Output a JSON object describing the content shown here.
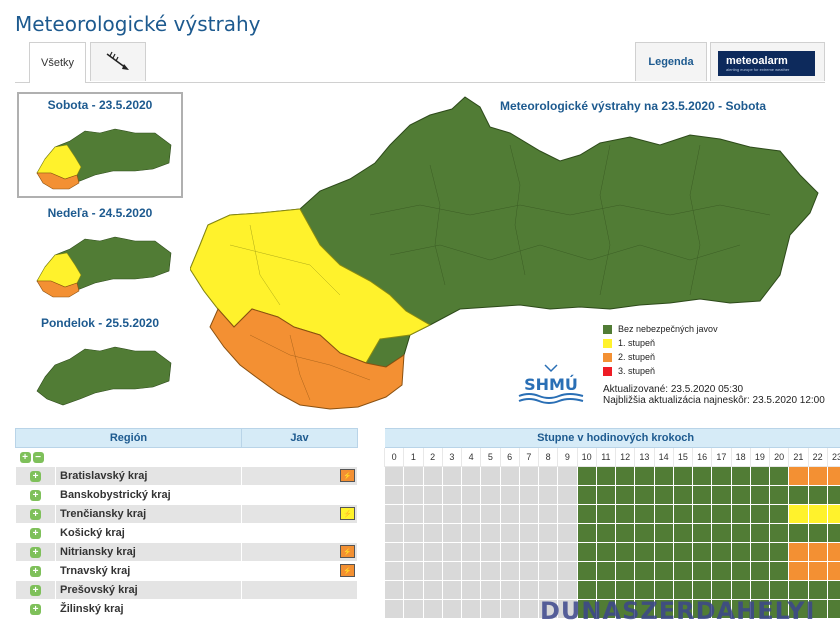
{
  "page": {
    "title": "Meteorologické výstrahy"
  },
  "tabs": {
    "all": "Všetky",
    "legend": "Legenda",
    "meteoalarm": "meteoalarm",
    "meteoalarm_sub": "alerting europe for extreme weather"
  },
  "days": [
    {
      "label": "Sobota - 23.5.2020"
    },
    {
      "label": "Nedeľa - 24.5.2020"
    },
    {
      "label": "Pondelok - 25.5.2020"
    }
  ],
  "map": {
    "title": "Meteorologické výstrahy na 23.5.2020 - Sobota",
    "legend": [
      {
        "label": "Bez nebezpečných javov",
        "color": "#517c35"
      },
      {
        "label": "1. stupeň",
        "color": "#fff22c"
      },
      {
        "label": "2. stupeň",
        "color": "#f39033"
      },
      {
        "label": "3. stupeň",
        "color": "#ee1c25"
      }
    ],
    "shmu_logo": "SHMÚ",
    "updated": "Aktualizované: 23.5.2020 05:30",
    "next_update": "Najbližšia aktualizácia najneskôr: 23.5.2020 12:00"
  },
  "table": {
    "col_region": "Región",
    "col_jav": "Jav",
    "col_hours": "Stupne v hodinových krokoch",
    "hours": [
      "0",
      "1",
      "2",
      "3",
      "4",
      "5",
      "6",
      "7",
      "8",
      "9",
      "10",
      "11",
      "12",
      "13",
      "14",
      "15",
      "16",
      "17",
      "18",
      "19",
      "20",
      "21",
      "22",
      "23"
    ],
    "rows": [
      {
        "name": "Bratislavský kraj",
        "jav": "orange",
        "levels": "ggggggggggGGGGGGGGGGGOOO"
      },
      {
        "name": "Banskobystrický kraj",
        "jav": "",
        "levels": "ggggggggggGGGGGGGGGGGGGG"
      },
      {
        "name": "Trenčiansky kraj",
        "jav": "yellow",
        "levels": "ggggggggggGGGGGGGGGGGYYY"
      },
      {
        "name": "Košický kraj",
        "jav": "",
        "levels": "ggggggggggGGGGGGGGGGGGGG"
      },
      {
        "name": "Nitriansky kraj",
        "jav": "orange",
        "levels": "ggggggggggGGGGGGGGGGGOOO"
      },
      {
        "name": "Trnavský kraj",
        "jav": "orange",
        "levels": "ggggggggggGGGGGGGGGGGOOO"
      },
      {
        "name": "Prešovský kraj",
        "jav": "",
        "levels": "ggggggggggGGGGGGGGGGGGGG"
      },
      {
        "name": "Žilinský kraj",
        "jav": "",
        "levels": "ggggggggggGGGGGGGGGGGGGG"
      }
    ]
  },
  "watermark": "DUNASZERDAHELYI"
}
